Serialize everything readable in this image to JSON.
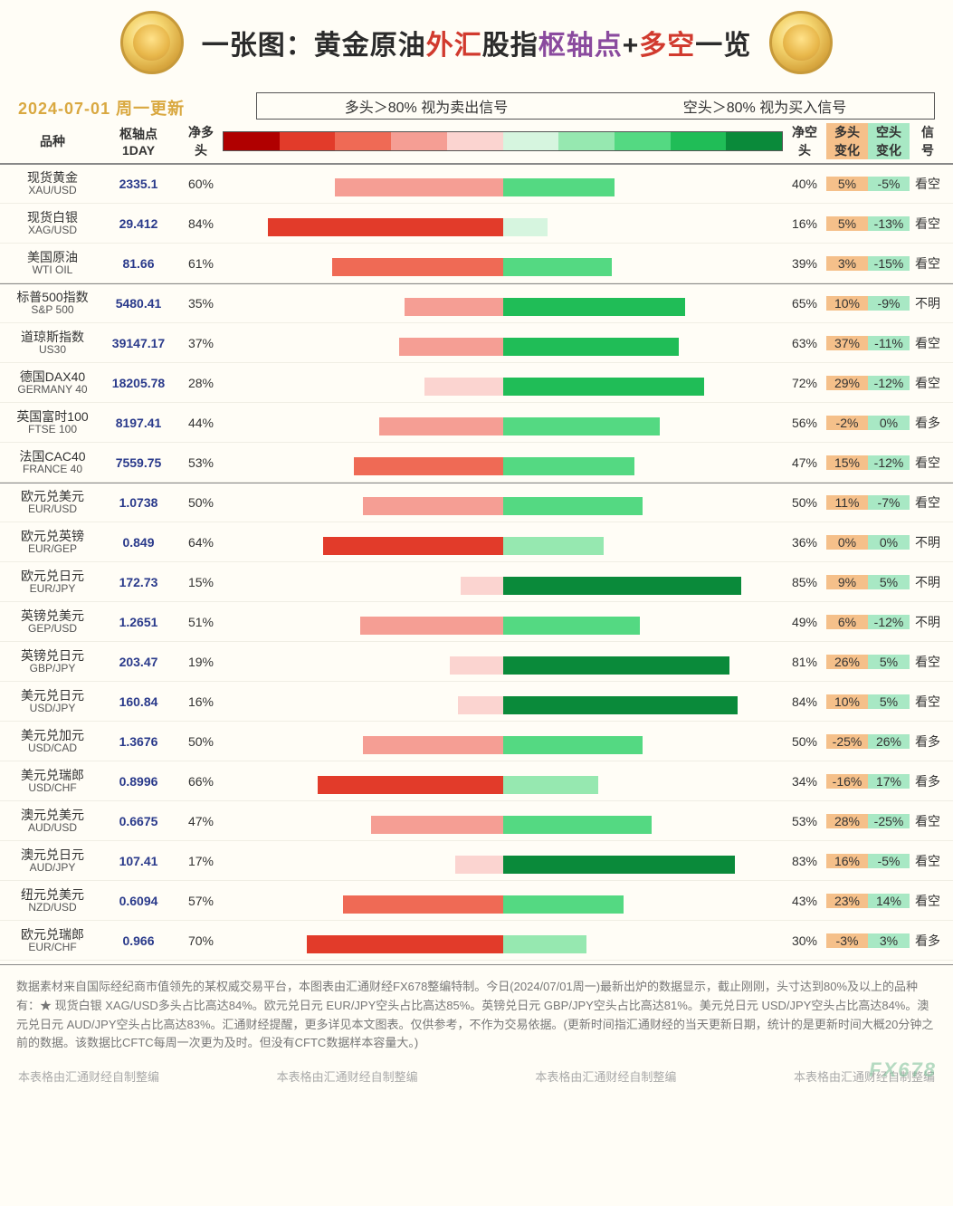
{
  "title_parts": [
    {
      "text": "一张图：黄金原油",
      "color": "#2b2b2b"
    },
    {
      "text": "外汇",
      "color": "#d13a2e"
    },
    {
      "text": "股指",
      "color": "#2b2b2b"
    },
    {
      "text": "枢轴点",
      "color": "#8a4a9e"
    },
    {
      "text": "+",
      "color": "#2b2b2b"
    },
    {
      "text": "多空",
      "color": "#d13a2e"
    },
    {
      "text": "一览",
      "color": "#2b2b2b"
    }
  ],
  "date_label": "2024-07-01 周一更新",
  "legend_left": "多头＞80% 视为卖出信号",
  "legend_right": "空头＞80% 视为买入信号",
  "columns": {
    "name": "品种",
    "pivot": "枢轴点\n1DAY",
    "long": "净多\n头",
    "short": "净空\n头",
    "long_chg": "多头\n变化",
    "short_chg": "空头\n变化",
    "signal": "信\n号"
  },
  "gradient_colors": [
    "#b00000",
    "#e23b2a",
    "#ef6a55",
    "#f59e94",
    "#fbd4d0",
    "#d6f5df",
    "#96e8b0",
    "#54d982",
    "#20bd57",
    "#0a8a3a"
  ],
  "chg_long_bg": "#f5c08a",
  "chg_short_bg": "#a8e8c4",
  "chart_half_scale_pct": 100,
  "rows": [
    {
      "group_start": true,
      "cn": "现货黄金",
      "en": "XAU/USD",
      "pivot": "2335.1",
      "long": 60,
      "short": 40,
      "long_color": "#f59e94",
      "short_color": "#54d982",
      "lchg": "5%",
      "schg": "-5%",
      "sig": "看空"
    },
    {
      "cn": "现货白银",
      "en": "XAG/USD",
      "pivot": "29.412",
      "long": 84,
      "short": 16,
      "long_color": "#e23b2a",
      "short_color": "#d6f5df",
      "lchg": "5%",
      "schg": "-13%",
      "sig": "看空"
    },
    {
      "cn": "美国原油",
      "en": "WTI OIL",
      "pivot": "81.66",
      "long": 61,
      "short": 39,
      "long_color": "#ef6a55",
      "short_color": "#54d982",
      "lchg": "3%",
      "schg": "-15%",
      "sig": "看空"
    },
    {
      "group_start": true,
      "cn": "标普500指数",
      "en": "S&P 500",
      "pivot": "5480.41",
      "long": 35,
      "short": 65,
      "long_color": "#f59e94",
      "short_color": "#20bd57",
      "lchg": "10%",
      "schg": "-9%",
      "sig": "不明"
    },
    {
      "cn": "道琼斯指数",
      "en": "US30",
      "pivot": "39147.17",
      "long": 37,
      "short": 63,
      "long_color": "#f59e94",
      "short_color": "#20bd57",
      "lchg": "37%",
      "schg": "-11%",
      "sig": "看空"
    },
    {
      "cn": "德国DAX40",
      "en": "GERMANY 40",
      "pivot": "18205.78",
      "long": 28,
      "short": 72,
      "long_color": "#fbd4d0",
      "short_color": "#20bd57",
      "lchg": "29%",
      "schg": "-12%",
      "sig": "看空"
    },
    {
      "cn": "英国富时100",
      "en": "FTSE 100",
      "pivot": "8197.41",
      "long": 44,
      "short": 56,
      "long_color": "#f59e94",
      "short_color": "#54d982",
      "lchg": "-2%",
      "schg": "0%",
      "sig": "看多"
    },
    {
      "cn": "法国CAC40",
      "en": "FRANCE 40",
      "pivot": "7559.75",
      "long": 53,
      "short": 47,
      "long_color": "#ef6a55",
      "short_color": "#54d982",
      "lchg": "15%",
      "schg": "-12%",
      "sig": "看空"
    },
    {
      "group_start": true,
      "cn": "欧元兑美元",
      "en": "EUR/USD",
      "pivot": "1.0738",
      "long": 50,
      "short": 50,
      "long_color": "#f59e94",
      "short_color": "#54d982",
      "lchg": "11%",
      "schg": "-7%",
      "sig": "看空"
    },
    {
      "cn": "欧元兑英镑",
      "en": "EUR/GEP",
      "pivot": "0.849",
      "long": 64,
      "short": 36,
      "long_color": "#e23b2a",
      "short_color": "#96e8b0",
      "lchg": "0%",
      "schg": "0%",
      "sig": "不明"
    },
    {
      "cn": "欧元兑日元",
      "en": "EUR/JPY",
      "pivot": "172.73",
      "long": 15,
      "short": 85,
      "long_color": "#fbd4d0",
      "short_color": "#0a8a3a",
      "lchg": "9%",
      "schg": "5%",
      "sig": "不明"
    },
    {
      "cn": "英镑兑美元",
      "en": "GEP/USD",
      "pivot": "1.2651",
      "long": 51,
      "short": 49,
      "long_color": "#f59e94",
      "short_color": "#54d982",
      "lchg": "6%",
      "schg": "-12%",
      "sig": "不明"
    },
    {
      "cn": "英镑兑日元",
      "en": "GBP/JPY",
      "pivot": "203.47",
      "long": 19,
      "short": 81,
      "long_color": "#fbd4d0",
      "short_color": "#0a8a3a",
      "lchg": "26%",
      "schg": "5%",
      "sig": "看空"
    },
    {
      "cn": "美元兑日元",
      "en": "USD/JPY",
      "pivot": "160.84",
      "long": 16,
      "short": 84,
      "long_color": "#fbd4d0",
      "short_color": "#0a8a3a",
      "lchg": "10%",
      "schg": "5%",
      "sig": "看空"
    },
    {
      "cn": "美元兑加元",
      "en": "USD/CAD",
      "pivot": "1.3676",
      "long": 50,
      "short": 50,
      "long_color": "#f59e94",
      "short_color": "#54d982",
      "lchg": "-25%",
      "schg": "26%",
      "sig": "看多"
    },
    {
      "cn": "美元兑瑞郎",
      "en": "USD/CHF",
      "pivot": "0.8996",
      "long": 66,
      "short": 34,
      "long_color": "#e23b2a",
      "short_color": "#96e8b0",
      "lchg": "-16%",
      "schg": "17%",
      "sig": "看多"
    },
    {
      "cn": "澳元兑美元",
      "en": "AUD/USD",
      "pivot": "0.6675",
      "long": 47,
      "short": 53,
      "long_color": "#f59e94",
      "short_color": "#54d982",
      "lchg": "28%",
      "schg": "-25%",
      "sig": "看空"
    },
    {
      "cn": "澳元兑日元",
      "en": "AUD/JPY",
      "pivot": "107.41",
      "long": 17,
      "short": 83,
      "long_color": "#fbd4d0",
      "short_color": "#0a8a3a",
      "lchg": "16%",
      "schg": "-5%",
      "sig": "看空"
    },
    {
      "cn": "纽元兑美元",
      "en": "NZD/USD",
      "pivot": "0.6094",
      "long": 57,
      "short": 43,
      "long_color": "#ef6a55",
      "short_color": "#54d982",
      "lchg": "23%",
      "schg": "14%",
      "sig": "看空"
    },
    {
      "cn": "欧元兑瑞郎",
      "en": "EUR/CHF",
      "pivot": "0.966",
      "long": 70,
      "short": 30,
      "long_color": "#e23b2a",
      "short_color": "#96e8b0",
      "lchg": "-3%",
      "schg": "3%",
      "sig": "看多"
    }
  ],
  "footer_text": "数据素材来自国际经纪商市值领先的某权威交易平台，本图表由汇通财经FX678整编特制。今日(2024/07/01周一)最新出炉的数据显示，截止刚刚，头寸达到80%及以上的品种有：★ 现货白银 XAG/USD多头占比高达84%。欧元兑日元 EUR/JPY空头占比高达85%。英镑兑日元 GBP/JPY空头占比高达81%。美元兑日元 USD/JPY空头占比高达84%。澳元兑日元 AUD/JPY空头占比高达83%。汇通财经提醒，更多详见本文图表。仅供参考，不作为交易依据。(更新时间指汇通财经的当天更新日期，统计的是更新时间大概20分钟之前的数据。该数据比CFTC每周一次更为及时。但没有CFTC数据样本容量大。)",
  "credit_text": "本表格由汇通财经自制整编",
  "watermark": "FX678"
}
